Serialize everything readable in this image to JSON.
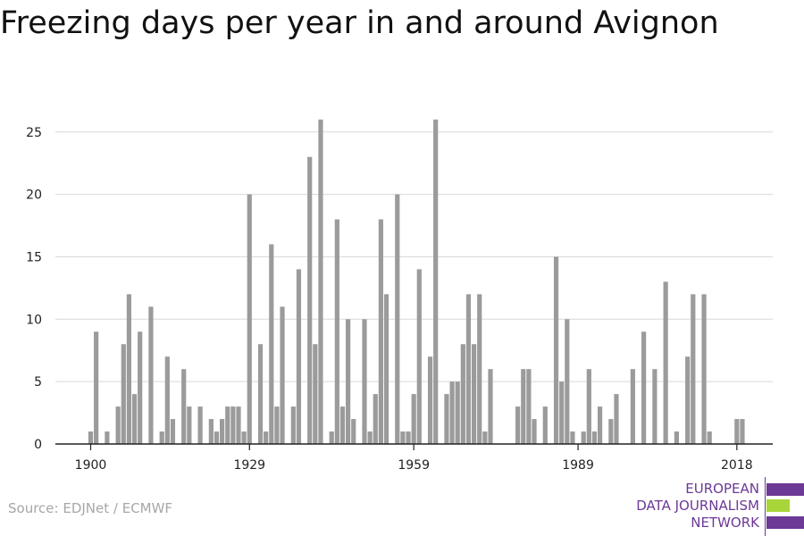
{
  "title": "Freezing days per year in and around Avignon",
  "source": "Source: EDJNet / ECMWF",
  "logo": {
    "line1": "EUROPEAN",
    "line2": "DATA JOURNALISM",
    "line3": "NETWORK",
    "colors": {
      "purple": "#6c3996",
      "green": "#a8d63a"
    }
  },
  "chart_data": {
    "type": "bar",
    "title": "Freezing days per year in and around Avignon",
    "xlabel": "",
    "ylabel": "",
    "ylim": [
      0,
      27
    ],
    "yticks": [
      0,
      5,
      10,
      15,
      20,
      25
    ],
    "xticks": [
      1900,
      1929,
      1959,
      1989,
      2018
    ],
    "grid": true,
    "bar_color": "#9b9b9b",
    "x": [
      1900,
      1901,
      1902,
      1903,
      1904,
      1905,
      1906,
      1907,
      1908,
      1909,
      1910,
      1911,
      1912,
      1913,
      1914,
      1915,
      1916,
      1917,
      1918,
      1919,
      1920,
      1921,
      1922,
      1923,
      1924,
      1925,
      1926,
      1927,
      1928,
      1929,
      1930,
      1931,
      1932,
      1933,
      1934,
      1935,
      1936,
      1937,
      1938,
      1939,
      1940,
      1941,
      1942,
      1943,
      1944,
      1945,
      1946,
      1947,
      1948,
      1949,
      1950,
      1951,
      1952,
      1953,
      1954,
      1955,
      1956,
      1957,
      1958,
      1959,
      1960,
      1961,
      1962,
      1963,
      1964,
      1965,
      1966,
      1967,
      1968,
      1969,
      1970,
      1971,
      1972,
      1973,
      1974,
      1975,
      1976,
      1977,
      1978,
      1979,
      1980,
      1981,
      1982,
      1983,
      1984,
      1985,
      1986,
      1987,
      1988,
      1989,
      1990,
      1991,
      1992,
      1993,
      1994,
      1995,
      1996,
      1997,
      1998,
      1999,
      2000,
      2001,
      2002,
      2003,
      2004,
      2005,
      2006,
      2007,
      2008,
      2009,
      2010,
      2011,
      2012,
      2013,
      2014,
      2015,
      2016,
      2017,
      2018,
      2019
    ],
    "values": [
      1,
      9,
      0,
      1,
      0,
      3,
      8,
      12,
      4,
      9,
      0,
      11,
      0,
      1,
      7,
      2,
      0,
      6,
      3,
      0,
      3,
      0,
      2,
      1,
      2,
      3,
      3,
      3,
      1,
      20,
      0,
      8,
      1,
      16,
      3,
      11,
      0,
      3,
      14,
      0,
      23,
      8,
      26,
      0,
      1,
      18,
      3,
      10,
      2,
      0,
      10,
      1,
      4,
      18,
      12,
      0,
      20,
      1,
      1,
      4,
      14,
      0,
      7,
      26,
      0,
      4,
      5,
      5,
      8,
      12,
      8,
      12,
      1,
      6,
      0,
      0,
      0,
      0,
      3,
      6,
      6,
      2,
      0,
      3,
      0,
      15,
      5,
      10,
      1,
      0,
      1,
      6,
      1,
      3,
      0,
      2,
      4,
      0,
      0,
      6,
      0,
      9,
      0,
      6,
      0,
      13,
      0,
      1,
      0,
      7,
      12,
      0,
      12,
      1,
      0,
      0,
      0,
      0,
      2,
      2
    ]
  }
}
